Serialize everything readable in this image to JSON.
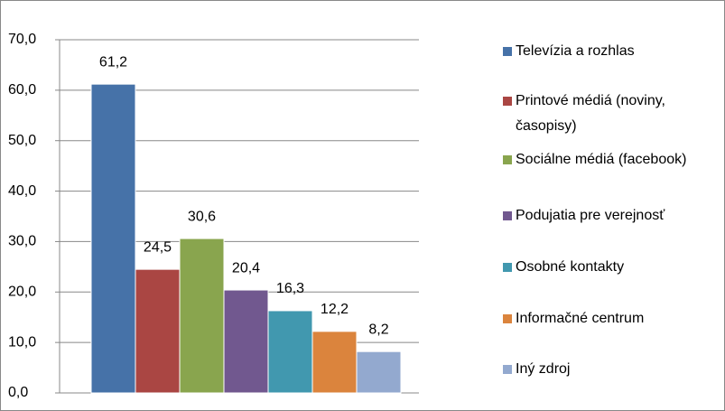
{
  "chart_data": {
    "type": "bar",
    "categories": [
      null
    ],
    "series": [
      {
        "name": "Televízia a rozhlas",
        "color": "#4672a8",
        "values": [
          61.2
        ],
        "value_labels": [
          "61,2"
        ]
      },
      {
        "name": "Printové médiá (noviny, časopisy)",
        "color": "#aa4643",
        "values": [
          24.5
        ],
        "value_labels": [
          "24,5"
        ]
      },
      {
        "name": "Sociálne médiá (facebook)",
        "color": "#89a54e",
        "values": [
          30.6
        ],
        "value_labels": [
          "30,6"
        ]
      },
      {
        "name": "Podujatia pre verejnosť",
        "color": "#71588f",
        "values": [
          20.4
        ],
        "value_labels": [
          "20,4"
        ]
      },
      {
        "name": "Osobné kontakty",
        "color": "#4198af",
        "values": [
          16.3
        ],
        "value_labels": [
          "16,3"
        ]
      },
      {
        "name": "Informačné centrum",
        "color": "#db843d",
        "values": [
          12.2
        ],
        "value_labels": [
          "12,2"
        ]
      },
      {
        "name": "Iný zdroj",
        "color": "#93a9cf",
        "values": [
          8.2
        ],
        "value_labels": [
          "8,2"
        ]
      }
    ],
    "ylim": [
      0,
      70
    ],
    "yticks": [
      {
        "value": 0,
        "label": "0,0"
      },
      {
        "value": 10,
        "label": "10,0"
      },
      {
        "value": 20,
        "label": "20,0"
      },
      {
        "value": 30,
        "label": "30,0"
      },
      {
        "value": 40,
        "label": "40,0"
      },
      {
        "value": 50,
        "label": "50,0"
      },
      {
        "value": 60,
        "label": "60,0"
      },
      {
        "value": 70,
        "label": "70,0"
      }
    ],
    "grid": true,
    "legend": "right"
  }
}
